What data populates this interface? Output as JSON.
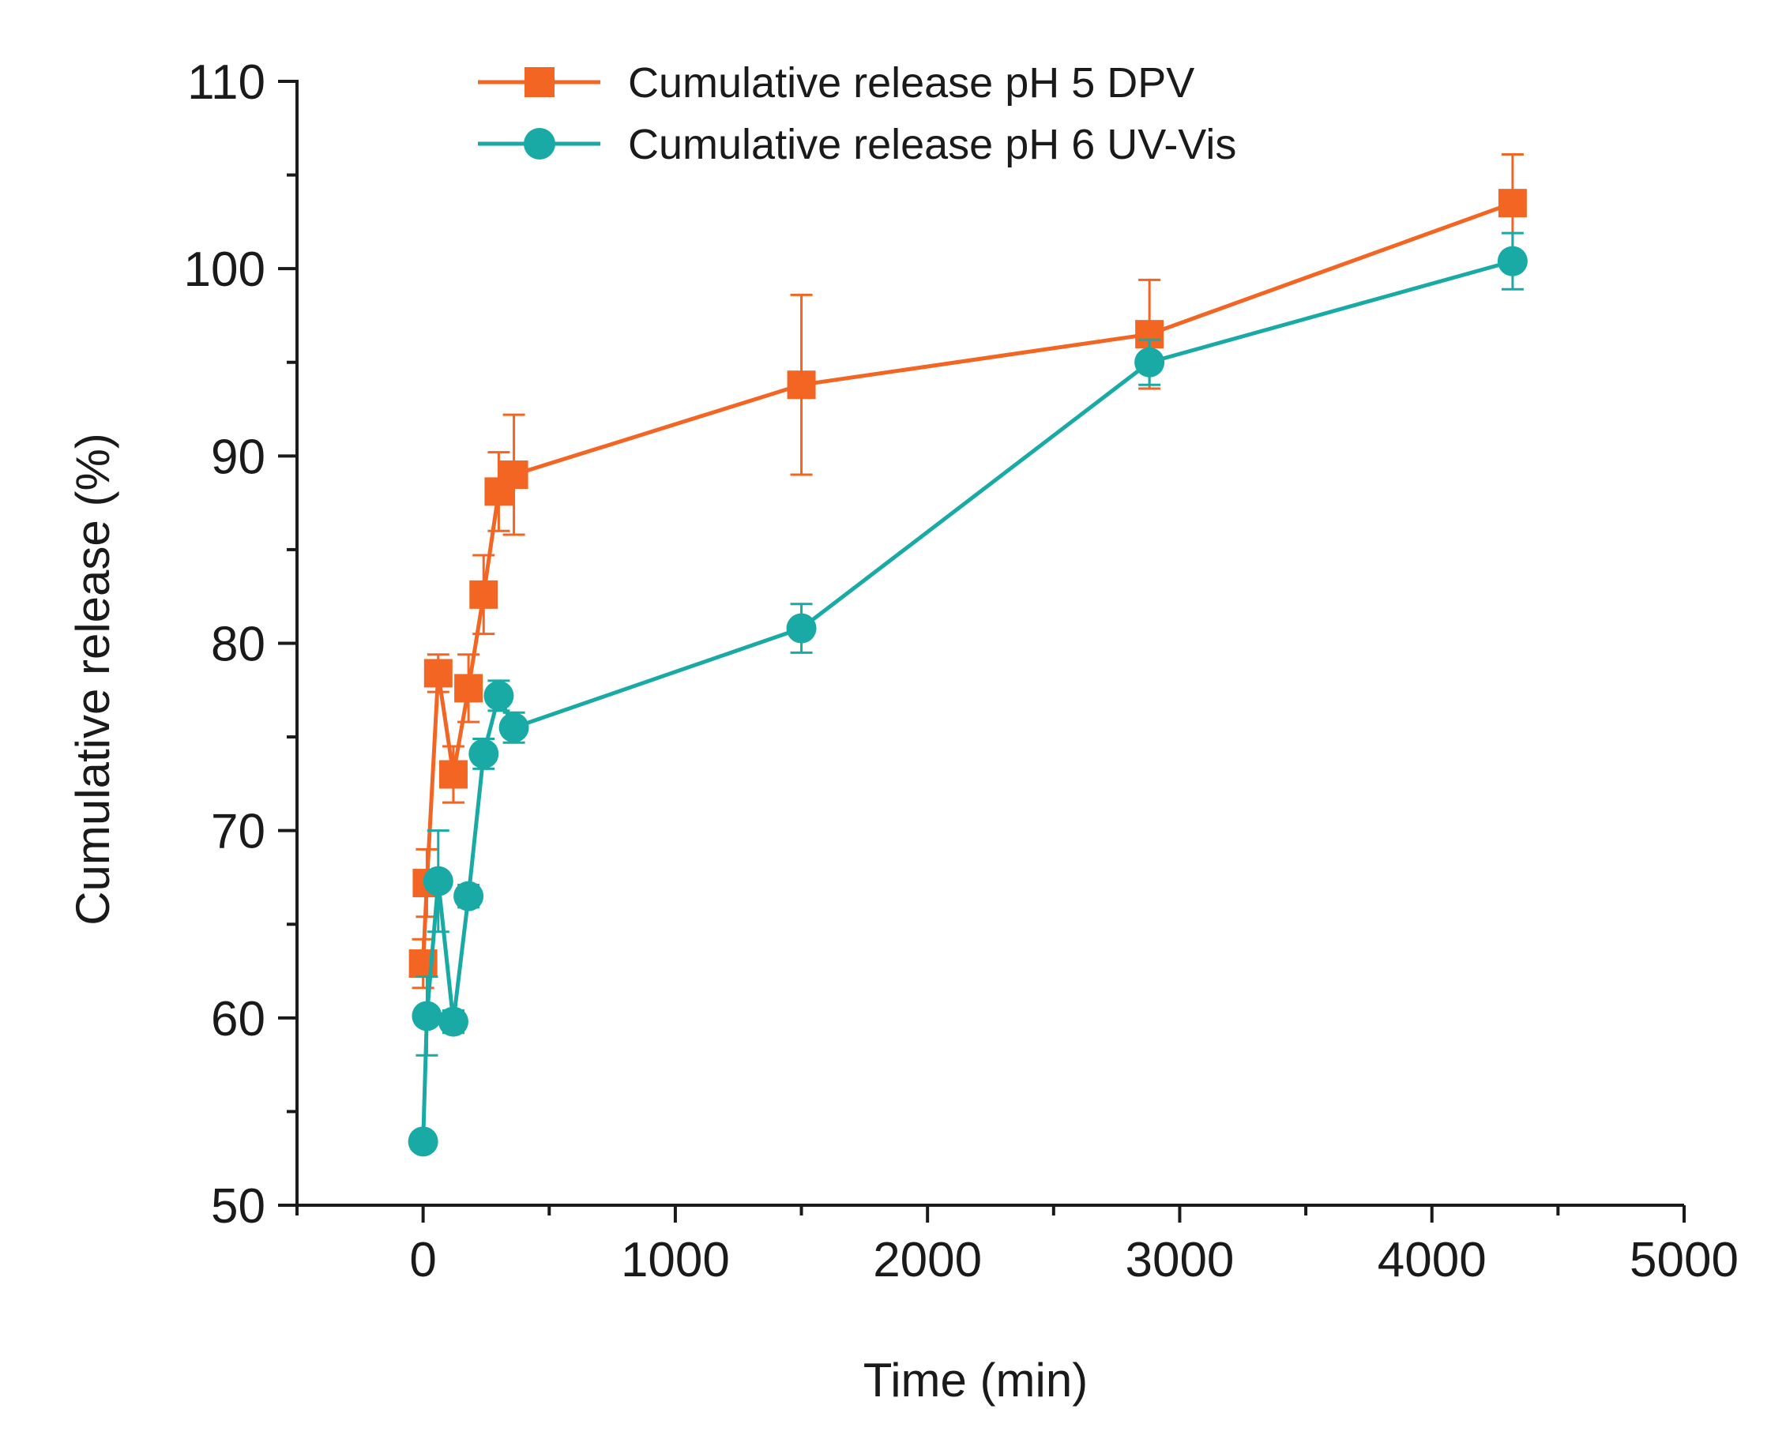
{
  "chart_data": {
    "type": "line",
    "title": "",
    "xlabel": "Time (min)",
    "ylabel": "Cumulative release (%)",
    "xlim": [
      -500,
      5000
    ],
    "ylim": [
      50,
      110
    ],
    "xticks": [
      0,
      1000,
      2000,
      3000,
      4000,
      5000
    ],
    "xtick_labels": [
      "0",
      "1000",
      "2000",
      "3000",
      "4000",
      "5000"
    ],
    "yticks": [
      50,
      60,
      70,
      80,
      90,
      100,
      110
    ],
    "ytick_labels": [
      "50",
      "60",
      "70",
      "80",
      "90",
      "100",
      "110"
    ],
    "grid": false,
    "legend_position": "top",
    "series": [
      {
        "name": "Cumulative release pH 5 DPV",
        "color": "#f26522",
        "marker": "square",
        "x": [
          0,
          15,
          60,
          120,
          180,
          240,
          300,
          360,
          1500,
          2880,
          4320
        ],
        "y": [
          62.9,
          67.2,
          78.4,
          73.0,
          77.6,
          82.6,
          88.1,
          89.0,
          93.8,
          96.5,
          103.5
        ],
        "error": [
          1.3,
          1.8,
          1.0,
          1.5,
          1.8,
          2.1,
          2.1,
          3.2,
          4.8,
          2.9,
          2.6
        ]
      },
      {
        "name": "Cumulative release pH 6 UV-Vis",
        "color": "#1aaaa5",
        "marker": "circle",
        "x": [
          0,
          15,
          60,
          120,
          180,
          240,
          300,
          360,
          1500,
          2880,
          4320
        ],
        "y": [
          53.4,
          60.1,
          67.3,
          59.8,
          66.5,
          74.1,
          77.2,
          75.5,
          80.8,
          95.0,
          100.4
        ],
        "error": [
          0.5,
          2.1,
          2.7,
          0.6,
          0.6,
          0.8,
          0.8,
          0.8,
          1.3,
          1.2,
          1.5
        ]
      }
    ]
  }
}
